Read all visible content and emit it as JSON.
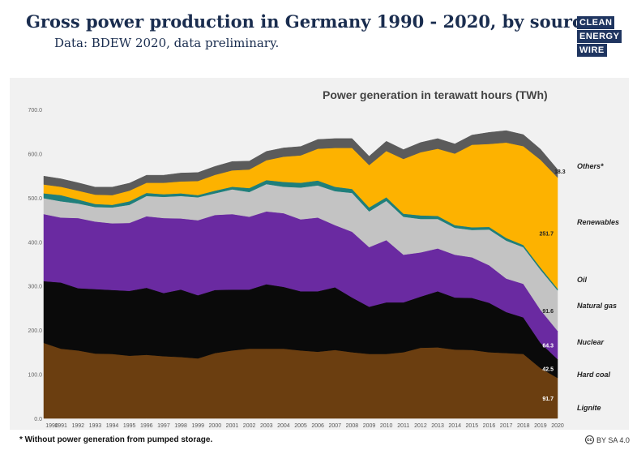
{
  "header": {
    "title": "Gross power production in Germany 1990 - 2020, by source.",
    "subtitle": "Data: BDEW 2020, data preliminary."
  },
  "logo": {
    "lines": [
      "CLEAN",
      "ENERGY",
      "WIRE"
    ],
    "color": "#1f3560"
  },
  "footnote": "* Without power generation from pumped storage.",
  "license": {
    "text": "BY SA 4.0",
    "icon": "cc-icon"
  },
  "chart_data": {
    "type": "area",
    "stacked": true,
    "title": "Power generation in terawatt hours (TWh)",
    "x": [
      "1990",
      "1991",
      "1992",
      "1993",
      "1994",
      "1995",
      "1996",
      "1997",
      "1998",
      "1999",
      "2000",
      "2001",
      "2002",
      "2003",
      "2004",
      "2005",
      "2006",
      "2007",
      "2008",
      "2009",
      "2010",
      "2011",
      "2012",
      "2013",
      "2014",
      "2015",
      "2016",
      "2017",
      "2018",
      "2019",
      "2020"
    ],
    "ylim": [
      0,
      700
    ],
    "yticks": [
      "0.0",
      "100.0",
      "200.0",
      "300.0",
      "400.0",
      "500.0",
      "600.0",
      "700.0"
    ],
    "grid": false,
    "legend": "right",
    "series": [
      {
        "name": "Lignite",
        "color": "#6b3e10",
        "values": [
          171,
          158,
          154,
          147,
          146,
          142,
          144,
          141,
          139,
          136,
          148,
          154,
          158,
          158,
          158,
          154,
          151,
          155,
          150,
          146,
          146,
          150,
          160,
          161,
          156,
          155,
          150,
          148,
          146,
          114,
          91.7
        ]
      },
      {
        "name": "Hard coal",
        "color": "#0a0a0a",
        "values": [
          140,
          150,
          141,
          146,
          145,
          147,
          152,
          143,
          153,
          143,
          143,
          138,
          134,
          146,
          140,
          134,
          137,
          142,
          124,
          107,
          117,
          113,
          116,
          127,
          118,
          118,
          112,
          93,
          83,
          57,
          42.5
        ]
      },
      {
        "name": "Nuclear",
        "color": "#6a2aa1",
        "values": [
          152,
          147,
          159,
          153,
          151,
          154,
          162,
          170,
          161,
          170,
          170,
          171,
          165,
          165,
          167,
          163,
          167,
          141,
          149,
          135,
          141,
          108,
          100,
          97,
          97,
          92,
          85,
          76,
          76,
          75,
          64.3
        ]
      },
      {
        "name": "Natural gas",
        "color": "#c3c3c3",
        "values": [
          36,
          37,
          33,
          33,
          36,
          41,
          46,
          48,
          51,
          52,
          49,
          56,
          56,
          62,
          60,
          72,
          73,
          77,
          88,
          81,
          89,
          86,
          76,
          67,
          61,
          62,
          81,
          86,
          83,
          91,
          91.6
        ]
      },
      {
        "name": "Oil",
        "color": "#1f7f7b",
        "values": [
          11,
          14,
          9,
          7,
          6,
          8,
          7,
          6,
          6,
          5,
          6,
          6,
          9,
          9,
          11,
          11,
          11,
          10,
          9,
          9,
          8,
          7,
          8,
          7,
          6,
          6,
          6,
          6,
          5,
          5,
          4.0
        ]
      },
      {
        "name": "Renewables",
        "color": "#fdb200",
        "values": [
          20,
          19,
          20,
          21,
          22,
          24,
          23,
          26,
          27,
          32,
          36,
          37,
          42,
          45,
          57,
          62,
          72,
          88,
          93,
          96,
          105,
          124,
          143,
          152,
          162,
          187,
          188,
          216,
          224,
          244,
          251.7
        ]
      },
      {
        "name": "Others*",
        "color": "#5b5b5b",
        "values": [
          19,
          18,
          18,
          17,
          18,
          17,
          17,
          17,
          19,
          19,
          19,
          20,
          19,
          20,
          20,
          20,
          21,
          21,
          21,
          20,
          22,
          21,
          22,
          23,
          22,
          22,
          26,
          27,
          26,
          24,
          18.3
        ]
      }
    ],
    "end_labels": [
      "91.7",
      "42.5",
      "64.3",
      "91.6",
      "",
      "251.7",
      "18.3"
    ],
    "end_label_colors": [
      "#ffffff",
      "#ffffff",
      "#ffffff",
      "#222222",
      "#222222",
      "#222222",
      "#222222"
    ]
  }
}
